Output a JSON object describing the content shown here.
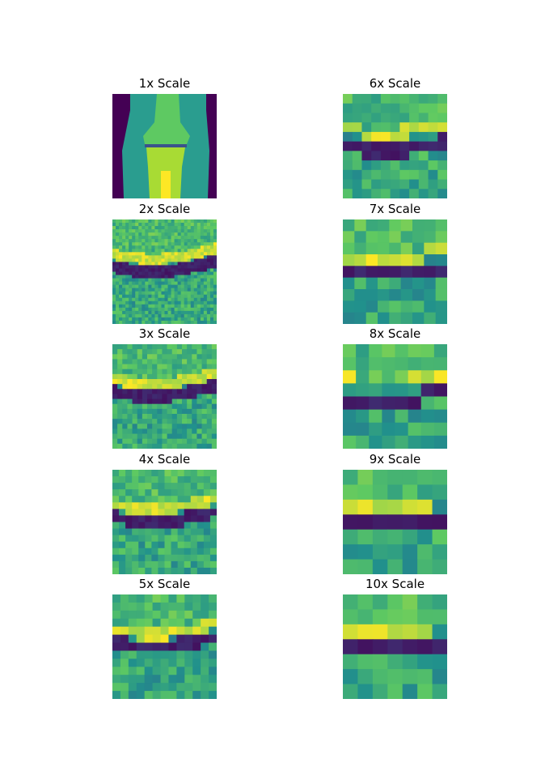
{
  "panels": [
    {
      "title": "1x Scale",
      "zoom": 1
    },
    {
      "title": "6x Scale",
      "zoom": 6
    },
    {
      "title": "2x Scale",
      "zoom": 2
    },
    {
      "title": "7x Scale",
      "zoom": 7
    },
    {
      "title": "3x Scale",
      "zoom": 3
    },
    {
      "title": "8x Scale",
      "zoom": 8
    },
    {
      "title": "4x Scale",
      "zoom": 4
    },
    {
      "title": "9x Scale",
      "zoom": 9
    },
    {
      "title": "5x Scale",
      "zoom": 5
    },
    {
      "title": "10x Scale",
      "zoom": 10
    }
  ],
  "colormap": "viridis",
  "colors": {
    "dark": "#440154",
    "mid": "#21918c",
    "bright": "#fde725"
  }
}
